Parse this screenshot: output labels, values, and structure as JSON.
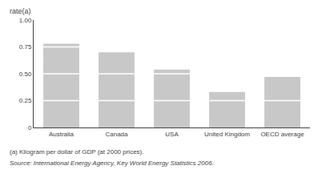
{
  "chart_data": {
    "type": "bar",
    "categories": [
      "Australia",
      "Canada",
      "USA",
      "United Kingdom",
      "OECD average"
    ],
    "values": [
      0.78,
      0.7,
      0.54,
      0.33,
      0.47
    ],
    "color": "#c8c8c8",
    "divider_levels": [
      0.25,
      0.5,
      0.75
    ],
    "ylabel": "rate(a)",
    "ylim": [
      0,
      1
    ],
    "yticks": [
      0,
      0.25,
      {
        "value": 0.5,
        "label": "0.50"
      },
      0.75,
      {
        "value": 1,
        "label": "1.00"
      }
    ],
    "grid": false,
    "annotations": [
      "(a) Kilogram per dollar of GDP (at 2000 prices).",
      "Source: International Energy Agency, Key World Energy Statistics 2006."
    ]
  }
}
